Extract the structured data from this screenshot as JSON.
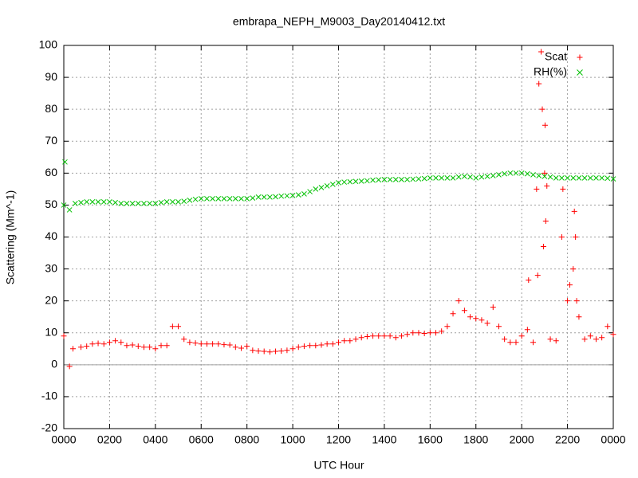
{
  "chart_data": {
    "type": "scatter",
    "title": "embrapa_NEPH_M9003_Day20140412.txt",
    "xlabel": "UTC Hour",
    "ylabel": "Scattering (Mm^-1)",
    "xlim": [
      0,
      24
    ],
    "ylim": [
      -20,
      100
    ],
    "xticks": [
      {
        "value": 0,
        "label": "0000"
      },
      {
        "value": 2,
        "label": "0200"
      },
      {
        "value": 4,
        "label": "0400"
      },
      {
        "value": 6,
        "label": "0600"
      },
      {
        "value": 8,
        "label": "0800"
      },
      {
        "value": 10,
        "label": "1000"
      },
      {
        "value": 12,
        "label": "1200"
      },
      {
        "value": 14,
        "label": "1400"
      },
      {
        "value": 16,
        "label": "1600"
      },
      {
        "value": 18,
        "label": "1800"
      },
      {
        "value": 20,
        "label": "2000"
      },
      {
        "value": 22,
        "label": "2200"
      },
      {
        "value": 24,
        "label": "0000"
      }
    ],
    "yticks": [
      -20,
      -10,
      0,
      10,
      20,
      30,
      40,
      50,
      60,
      70,
      80,
      90,
      100
    ],
    "grid": true,
    "zeroaxis": true,
    "legend": "top-right",
    "series": [
      {
        "name": "Scat",
        "color": "#ff0000",
        "marker": "plus",
        "x": [
          0,
          0.25,
          0.4,
          0.75,
          1,
          1.25,
          1.5,
          1.75,
          2,
          2.25,
          2.5,
          2.75,
          3,
          3.25,
          3.5,
          3.75,
          4,
          4.25,
          4.5,
          4.75,
          5,
          5.25,
          5.5,
          5.75,
          6,
          6.25,
          6.5,
          6.75,
          7,
          7.25,
          7.5,
          7.75,
          8,
          8.25,
          8.5,
          8.75,
          9,
          9.25,
          9.5,
          9.75,
          10,
          10.25,
          10.5,
          10.75,
          11,
          11.25,
          11.5,
          11.75,
          12,
          12.25,
          12.5,
          12.75,
          13,
          13.25,
          13.5,
          13.75,
          14,
          14.25,
          14.5,
          14.75,
          15,
          15.25,
          15.5,
          15.75,
          16,
          16.25,
          16.5,
          16.75,
          17,
          17.25,
          17.5,
          17.75,
          18,
          18.25,
          18.5,
          18.75,
          19,
          19.25,
          19.5,
          19.75,
          20,
          20.25,
          20.5,
          20.75,
          21,
          21.25,
          21.5,
          21.75,
          22,
          22.25,
          22.5,
          22.75,
          23,
          23.25,
          23.5,
          23.75,
          24,
          20.85,
          20.9,
          21.02,
          21.05,
          21.1,
          20.65,
          20.7,
          21.8,
          22.3,
          22.35,
          20.3,
          20.95,
          22.1,
          22.4
        ],
        "values": [
          9,
          -0.5,
          5,
          5.5,
          5.8,
          6.5,
          6.7,
          6.5,
          7,
          7.5,
          7,
          6,
          6.2,
          5.8,
          5.5,
          5.5,
          5,
          6,
          6,
          12,
          12,
          8,
          7,
          6.8,
          6.5,
          6.5,
          6.5,
          6.5,
          6.3,
          6.2,
          5.5,
          5.2,
          5.8,
          4.5,
          4.3,
          4.2,
          4,
          4.2,
          4.3,
          4.5,
          5,
          5.5,
          5.8,
          6,
          6,
          6.2,
          6.5,
          6.5,
          7,
          7.5,
          7.5,
          8,
          8.5,
          8.8,
          9,
          9,
          9,
          9,
          8.5,
          9,
          9.5,
          10,
          10,
          9.8,
          10,
          10,
          10.5,
          12,
          16,
          20,
          17,
          15,
          14.5,
          14,
          13,
          18,
          12,
          8,
          7,
          7,
          9,
          11,
          7,
          88,
          60,
          8,
          7.5,
          40,
          20,
          30,
          15,
          8,
          9,
          8,
          8.5,
          12,
          9.5,
          98,
          80,
          75,
          45,
          56,
          55,
          28,
          55,
          48,
          40,
          26.5,
          37,
          25,
          20
        ]
      },
      {
        "name": "RH(%)",
        "color": "#00c000",
        "marker": "cross",
        "x": [
          0,
          0.05,
          0.25,
          0.5,
          0.75,
          1,
          1.25,
          1.5,
          1.75,
          2,
          2.25,
          2.5,
          2.75,
          3,
          3.25,
          3.5,
          3.75,
          4,
          4.25,
          4.5,
          4.75,
          5,
          5.25,
          5.5,
          5.75,
          6,
          6.25,
          6.5,
          6.75,
          7,
          7.25,
          7.5,
          7.75,
          8,
          8.25,
          8.5,
          8.75,
          9,
          9.25,
          9.5,
          9.75,
          10,
          10.25,
          10.5,
          10.75,
          11,
          11.25,
          11.5,
          11.75,
          12,
          12.25,
          12.5,
          12.75,
          13,
          13.25,
          13.5,
          13.75,
          14,
          14.25,
          14.5,
          14.75,
          15,
          15.25,
          15.5,
          15.75,
          16,
          16.25,
          16.5,
          16.75,
          17,
          17.25,
          17.5,
          17.75,
          18,
          18.25,
          18.5,
          18.75,
          19,
          19.25,
          19.5,
          19.75,
          20,
          20.25,
          20.5,
          20.75,
          21,
          21.25,
          21.5,
          21.75,
          22,
          22.25,
          22.5,
          22.75,
          23,
          23.25,
          23.5,
          23.75,
          24
        ],
        "values": [
          50,
          63.5,
          48.5,
          50.5,
          50.8,
          51,
          51,
          51,
          51,
          51,
          50.8,
          50.5,
          50.5,
          50.5,
          50.5,
          50.5,
          50.5,
          50.5,
          50.8,
          51,
          51,
          51,
          51.2,
          51.5,
          51.8,
          52,
          52,
          52,
          52,
          52,
          52,
          52,
          52,
          52,
          52.2,
          52.5,
          52.5,
          52.5,
          52.6,
          52.8,
          52.9,
          53,
          53.2,
          53.5,
          54.2,
          55,
          55.5,
          56,
          56.5,
          57,
          57.2,
          57.3,
          57.4,
          57.5,
          57.6,
          57.8,
          57.9,
          58,
          58,
          58,
          58,
          58,
          58.1,
          58.2,
          58.3,
          58.5,
          58.5,
          58.5,
          58.5,
          58.5,
          58.8,
          59,
          58.8,
          58.5,
          58.8,
          59,
          59.2,
          59.5,
          59.8,
          60,
          60,
          60,
          59.8,
          59.5,
          59.2,
          59,
          58.8,
          58.5,
          58.5,
          58.5,
          58.5,
          58.5,
          58.5,
          58.5,
          58.5,
          58.5,
          58.4,
          58.2
        ]
      }
    ]
  }
}
